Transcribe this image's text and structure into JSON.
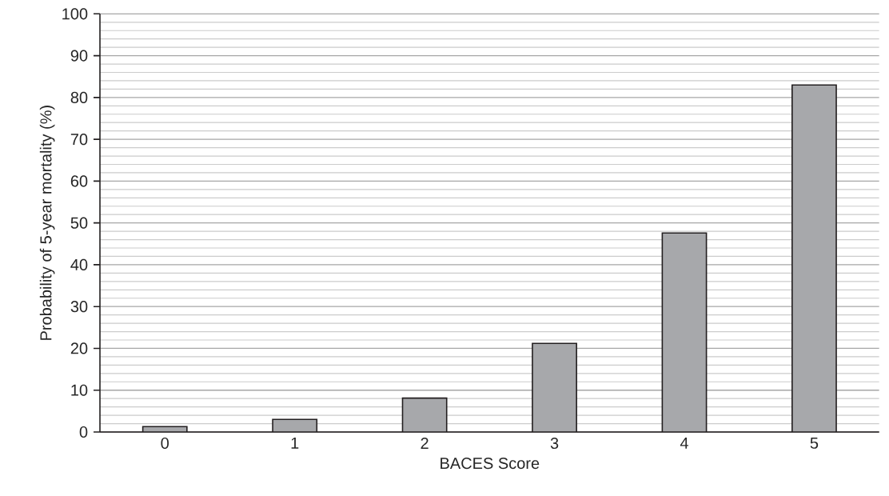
{
  "chart_data": {
    "type": "bar",
    "xlabel": "BACES Score",
    "ylabel": "Probability of 5-year mortality (%)",
    "categories": [
      "0",
      "1",
      "2",
      "3",
      "4",
      "5"
    ],
    "values": [
      1.3,
      3.0,
      8.1,
      21.2,
      47.6,
      83.0
    ],
    "color": "#a7a8ab",
    "ylim": [
      0,
      100
    ],
    "yticks": [
      0,
      10,
      20,
      30,
      40,
      50,
      60,
      70,
      80,
      90,
      100
    ],
    "grid": "y"
  }
}
